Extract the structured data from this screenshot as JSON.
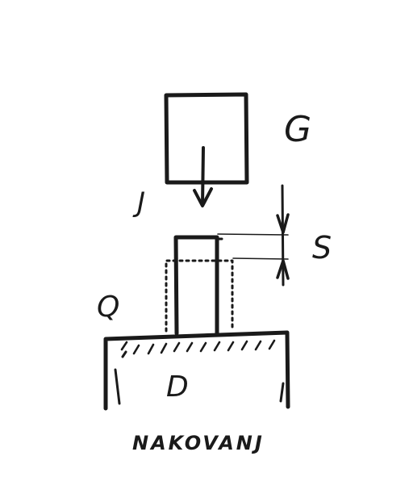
{
  "labels": {
    "weight": "G",
    "velocity": "J",
    "stroke": "S",
    "workpiece": "Q",
    "anvil_mark": "D",
    "anvil_caption": "NAKOVANJ"
  },
  "colors": {
    "ink": "#1a1a1a",
    "background": "#ffffff"
  },
  "icons": {
    "fall_arrow": "arrow-down-icon",
    "stroke_arrows": "dimension-arrows-icon"
  }
}
